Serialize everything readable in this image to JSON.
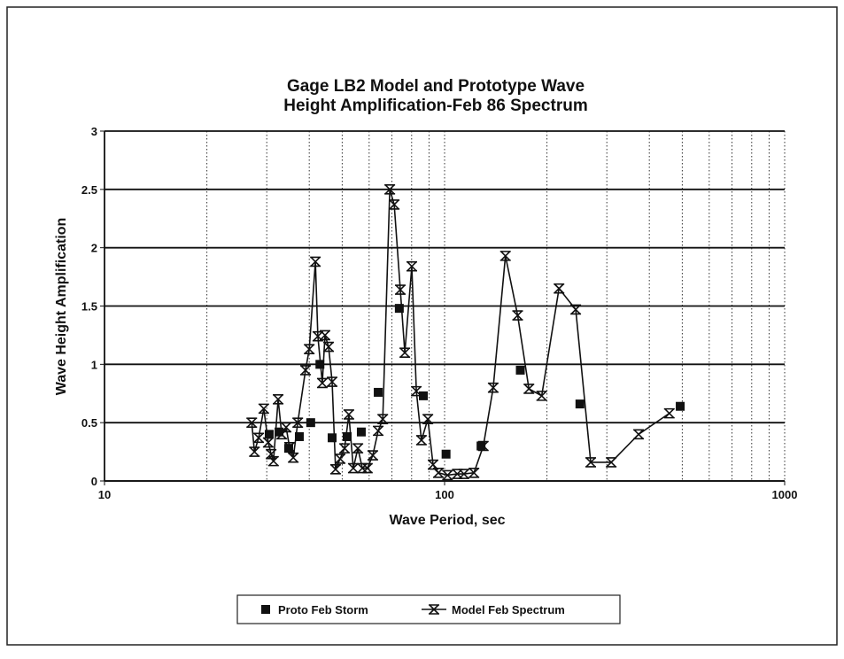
{
  "chart_data": {
    "type": "line",
    "title": [
      "Gage LB2 Model and Prototype Wave",
      "Height Amplification-Feb 86 Spectrum"
    ],
    "x_label": "Wave Period, sec",
    "y_label": "Wave Height Amplification",
    "xlim": [
      10,
      1000
    ],
    "xticks": [
      10,
      100,
      1000
    ],
    "x_log": true,
    "x_minor_grid": true,
    "ylim": [
      0,
      3
    ],
    "yticks": [
      0,
      0.5,
      1,
      1.5,
      2,
      2.5,
      3
    ],
    "grid": true,
    "legend": "bottom",
    "series": [
      {
        "name": "Proto Feb Storm",
        "color": "#111111",
        "marker": "square",
        "line": false,
        "x": [
          30.5,
          32.6,
          34.8,
          37.4,
          40.4,
          43.0,
          46.7,
          51.7,
          56.9,
          63.8,
          73.6,
          86.6,
          101,
          128,
          167,
          250,
          493
        ],
        "values": [
          0.4,
          0.42,
          0.28,
          0.38,
          0.5,
          1.0,
          0.37,
          0.38,
          0.42,
          0.76,
          1.48,
          0.73,
          0.23,
          0.3,
          0.95,
          0.66,
          0.64
        ]
      },
      {
        "name": "Model Feb Spectrum",
        "color": "#111111",
        "marker": "hourglass",
        "line": true,
        "x": [
          27.1,
          27.6,
          28.4,
          29.4,
          30.3,
          30.9,
          31.4,
          32.4,
          33.2,
          34.2,
          35.0,
          35.9,
          37.0,
          39.0,
          40.0,
          41.7,
          42.4,
          43.7,
          44.5,
          45.6,
          46.7,
          47.8,
          49.3,
          50.8,
          52.3,
          53.9,
          55.6,
          57.3,
          59.3,
          61.5,
          63.8,
          65.8,
          69.0,
          71.1,
          74.1,
          76.4,
          80.1,
          82.6,
          85.5,
          89.3,
          92.5,
          95.9,
          102,
          109,
          114,
          122,
          130,
          139,
          151,
          164,
          177,
          193,
          217,
          243,
          269,
          309,
          372,
          458
        ],
        "values": [
          0.5,
          0.25,
          0.37,
          0.62,
          0.33,
          0.23,
          0.17,
          0.7,
          0.4,
          0.46,
          0.29,
          0.2,
          0.5,
          0.95,
          1.13,
          1.88,
          1.24,
          0.84,
          1.25,
          1.15,
          0.85,
          0.1,
          0.19,
          0.28,
          0.57,
          0.11,
          0.28,
          0.11,
          0.11,
          0.22,
          0.43,
          0.53,
          2.5,
          2.37,
          1.64,
          1.1,
          1.84,
          0.77,
          0.35,
          0.53,
          0.14,
          0.07,
          0.05,
          0.06,
          0.06,
          0.07,
          0.3,
          0.8,
          1.93,
          1.42,
          0.79,
          0.73,
          1.65,
          1.47,
          0.16,
          0.16,
          0.4,
          0.58
        ]
      }
    ]
  }
}
